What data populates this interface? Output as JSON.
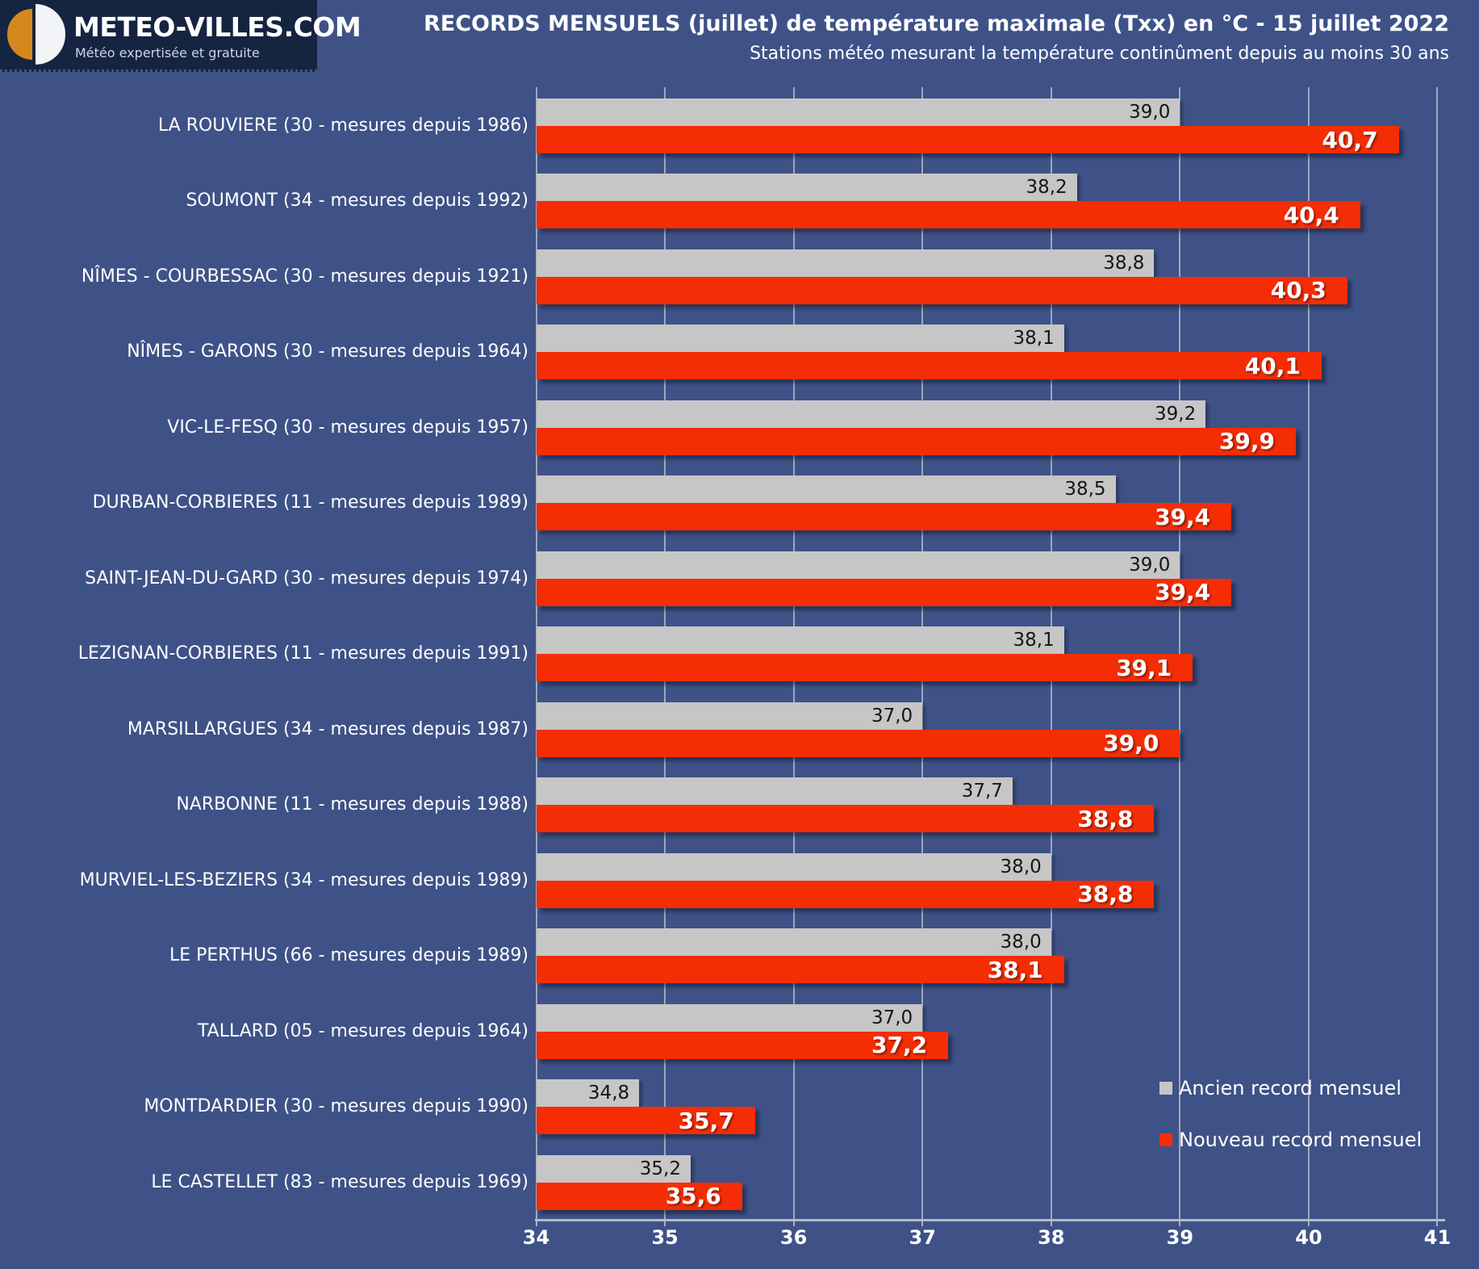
{
  "header": {
    "logo": {
      "title": "METEO-VILLES.COM",
      "tagline": "Météo expertisée et gratuite"
    },
    "title": "RECORDS MENSUELS (juillet) de température maximale (Txx) en °C - 15 juillet 2022",
    "subtitle": "Stations météo mesurant la température continûment depuis au moins 30 ans"
  },
  "colors": {
    "background": "#3e5287",
    "logo_background": "#152440",
    "logo_orange": "#d5891c",
    "grid": "#afb6c6",
    "old_record_bar": "#c6c6c6",
    "new_record_bar": "#f52d05"
  },
  "chart_data": {
    "type": "bar",
    "orientation": "horizontal",
    "title": "RECORDS MENSUELS (juillet) de température maximale (Txx) en °C - 15 juillet 2022",
    "subtitle": "Stations météo mesurant la température continûment depuis au moins 30 ans",
    "xlabel": "",
    "ylabel": "",
    "xlim": [
      34,
      41
    ],
    "xticks": [
      "34",
      "35",
      "36",
      "37",
      "38",
      "39",
      "40",
      "41"
    ],
    "grid": true,
    "legend_position": "bottom-right",
    "categories": [
      "LA ROUVIERE (30 - mesures depuis 1986)",
      "SOUMONT (34 - mesures depuis 1992)",
      "NÎMES - COURBESSAC (30 - mesures depuis 1921)",
      "NÎMES - GARONS (30 - mesures depuis 1964)",
      "VIC-LE-FESQ (30 - mesures depuis 1957)",
      "DURBAN-CORBIERES (11 - mesures depuis 1989)",
      "SAINT-JEAN-DU-GARD (30 - mesures depuis 1974)",
      "LEZIGNAN-CORBIERES (11 - mesures depuis 1991)",
      "MARSILLARGUES (34 - mesures depuis 1987)",
      "NARBONNE (11 - mesures depuis 1988)",
      "MURVIEL-LES-BEZIERS (34 - mesures depuis 1989)",
      "LE PERTHUS (66 - mesures depuis 1989)",
      "TALLARD (05 - mesures depuis 1964)",
      "MONTDARDIER (30 - mesures depuis 1990)",
      "LE CASTELLET (83 - mesures depuis 1969)"
    ],
    "series": [
      {
        "name": "Ancien record mensuel",
        "color": "#c6c6c6",
        "values": [
          39.0,
          38.2,
          38.8,
          38.1,
          39.2,
          38.5,
          39.0,
          38.1,
          37.0,
          37.7,
          38.0,
          38.0,
          37.0,
          34.8,
          35.2
        ],
        "value_labels": [
          "39,0",
          "38,2",
          "38,8",
          "38,1",
          "39,2",
          "38,5",
          "39,0",
          "38,1",
          "37,0",
          "37,7",
          "38,0",
          "38,0",
          "37,0",
          "34,8",
          "35,2"
        ]
      },
      {
        "name": "Nouveau record mensuel",
        "color": "#f52d05",
        "values": [
          40.7,
          40.4,
          40.3,
          40.1,
          39.9,
          39.4,
          39.4,
          39.1,
          39.0,
          38.8,
          38.8,
          38.1,
          37.2,
          35.7,
          35.6
        ],
        "value_labels": [
          "40,7",
          "40,4",
          "40,3",
          "40,1",
          "39,9",
          "39,4",
          "39,4",
          "39,1",
          "39,0",
          "38,8",
          "38,8",
          "38,1",
          "37,2",
          "35,7",
          "35,6"
        ]
      }
    ]
  }
}
